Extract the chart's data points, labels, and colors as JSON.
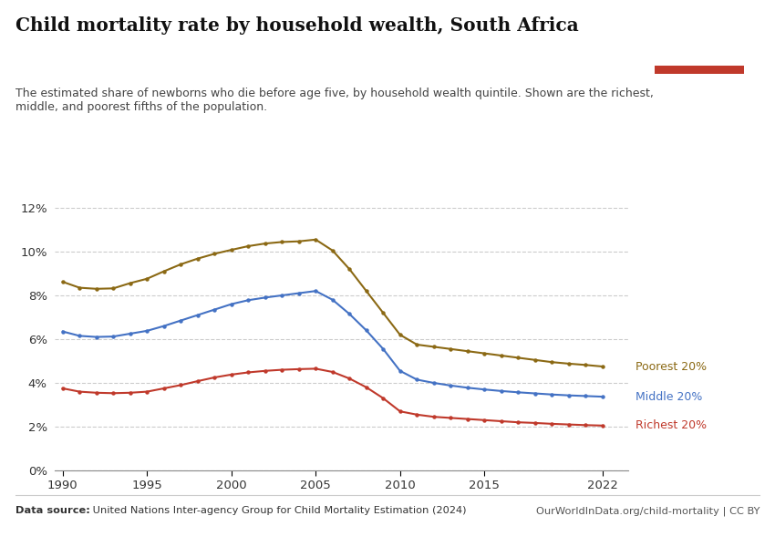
{
  "title": "Child mortality rate by household wealth, South Africa",
  "subtitle": "The estimated share of newborns who die before age five, by household wealth quintile. Shown are the richest,\nmiddle, and poorest fifths of the population.",
  "datasource_bold": "Data source:",
  "datasource_rest": " United Nations Inter-agency Group for Child Mortality Estimation (2024)",
  "url": "OurWorldInData.org/child-mortality | CC BY",
  "years": [
    1990,
    1991,
    1992,
    1993,
    1994,
    1995,
    1996,
    1997,
    1998,
    1999,
    2000,
    2001,
    2002,
    2003,
    2004,
    2005,
    2006,
    2007,
    2008,
    2009,
    2010,
    2011,
    2012,
    2013,
    2014,
    2015,
    2016,
    2017,
    2018,
    2019,
    2020,
    2021,
    2022
  ],
  "poorest": [
    0.0862,
    0.0835,
    0.083,
    0.0832,
    0.0856,
    0.0876,
    0.091,
    0.0942,
    0.0968,
    0.099,
    0.1008,
    0.1025,
    0.1037,
    0.1044,
    0.1047,
    0.1055,
    0.1005,
    0.092,
    0.082,
    0.072,
    0.062,
    0.0575,
    0.0565,
    0.0555,
    0.0545,
    0.0535,
    0.0525,
    0.0515,
    0.0505,
    0.0495,
    0.0488,
    0.0482,
    0.0475
  ],
  "middle": [
    0.0635,
    0.0615,
    0.061,
    0.0612,
    0.0625,
    0.0638,
    0.066,
    0.0685,
    0.071,
    0.0735,
    0.076,
    0.0778,
    0.079,
    0.08,
    0.081,
    0.082,
    0.078,
    0.0715,
    0.064,
    0.0555,
    0.0455,
    0.0415,
    0.04,
    0.0388,
    0.0378,
    0.037,
    0.0363,
    0.0357,
    0.0352,
    0.0347,
    0.0343,
    0.034,
    0.0337
  ],
  "richest": [
    0.0375,
    0.036,
    0.0355,
    0.0353,
    0.0355,
    0.036,
    0.0375,
    0.039,
    0.0408,
    0.0425,
    0.0438,
    0.0448,
    0.0455,
    0.046,
    0.0463,
    0.0465,
    0.045,
    0.042,
    0.038,
    0.033,
    0.027,
    0.0255,
    0.0245,
    0.024,
    0.0235,
    0.023,
    0.0225,
    0.022,
    0.0217,
    0.0213,
    0.021,
    0.0207,
    0.0205
  ],
  "color_poorest": "#8B6914",
  "color_middle": "#4472C4",
  "color_richest": "#C0392B",
  "bg_color": "#FFFFFF",
  "grid_color": "#CCCCCC",
  "ylim": [
    0,
    0.13
  ],
  "yticks": [
    0,
    0.02,
    0.04,
    0.06,
    0.08,
    0.1,
    0.12
  ],
  "xticks": [
    1990,
    1995,
    2000,
    2005,
    2010,
    2015,
    2022
  ],
  "owid_box_color": "#1a3a5c",
  "owid_bar_color": "#C0392B",
  "label_poorest": "Poorest 20%",
  "label_middle": "Middle 20%",
  "label_richest": "Richest 20%"
}
